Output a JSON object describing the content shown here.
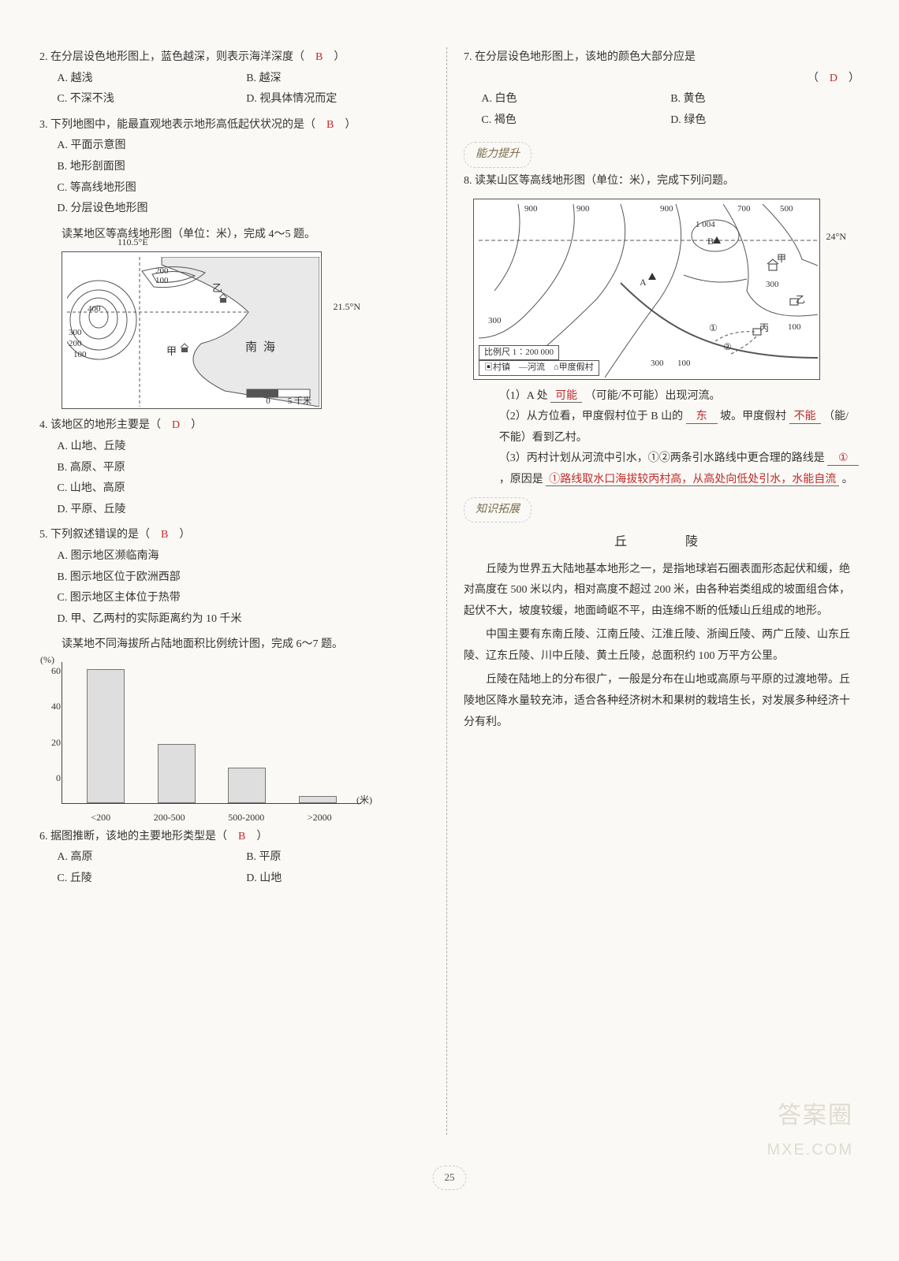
{
  "page_number": "25",
  "colors": {
    "answer": "#c02a2a",
    "text": "#333333",
    "divider": "#aaaaaa",
    "bar_fill": "#dedede",
    "bar_border": "#777777"
  },
  "left": {
    "q2": {
      "stem": "2. 在分层设色地形图上，蓝色越深，则表示海洋深度（　",
      "answer": "B",
      "stem_end": "　）",
      "opts": [
        "A. 越浅",
        "B. 越深",
        "C. 不深不浅",
        "D. 视具体情况而定"
      ]
    },
    "q3": {
      "stem": "3. 下列地图中，能最直观地表示地形高低起伏状况的是（　",
      "answer": "B",
      "stem_end": "　）",
      "opts": [
        "A. 平面示意图",
        "B. 地形剖面图",
        "C. 等高线地形图",
        "D. 分层设色地形图"
      ]
    },
    "stem45_lead": "　　读某地区等高线地形图（单位：米），完成 4～5 题。",
    "figure45": {
      "lon_label": "110.5°E",
      "lat_label": "21.5°N",
      "contours": [
        "100",
        "200",
        "300",
        "400",
        "300",
        "200",
        "100"
      ],
      "places": [
        "甲",
        "乙"
      ],
      "sea": "南海",
      "scale_label": "0　　5 千米"
    },
    "q4": {
      "stem": "4. 该地区的地形主要是（　",
      "answer": "D",
      "stem_end": "　）",
      "opts": [
        "A. 山地、丘陵",
        "B. 高原、平原",
        "C. 山地、高原",
        "D. 平原、丘陵"
      ]
    },
    "q5": {
      "stem": "5. 下列叙述错误的是（　",
      "answer": "B",
      "stem_end": "　）",
      "opts": [
        "A. 图示地区濒临南海",
        "B. 图示地区位于欧洲西部",
        "C. 图示地区主体位于热带",
        "D. 甲、乙两村的实际距离约为 10 千米"
      ]
    },
    "stem67_lead": "　　读某地不同海拔所占陆地面积比例统计图，完成 6～7 题。",
    "chart67": {
      "type": "bar",
      "y_label": "(%)",
      "x_label": "(米)",
      "y_ticks": [
        "60",
        "40",
        "20",
        "0"
      ],
      "y_max": 60,
      "categories": [
        "<200",
        "200-500",
        "500-2000",
        ">2000"
      ],
      "values": [
        57,
        25,
        15,
        3
      ],
      "bar_color": "#dedede",
      "bar_border": "#777777"
    },
    "q6": {
      "stem": "6. 据图推断，该地的主要地形类型是（　",
      "answer": "B",
      "stem_end": "　）",
      "opts": [
        "A. 高原",
        "B. 平原",
        "C. 丘陵",
        "D. 山地"
      ]
    }
  },
  "right": {
    "q7": {
      "stem": "7. 在分层设色地形图上，该地的颜色大部分应是",
      "paren_answer": "D",
      "opts": [
        "A. 白色",
        "B. 黄色",
        "C. 褐色",
        "D. 绿色"
      ]
    },
    "section_ability": "能力提升",
    "q8": {
      "stem": "8. 读某山区等高线地形图（单位：米），完成下列问题。",
      "figure": {
        "lat_label": "24°N",
        "contour_labels": [
          "900",
          "900",
          "900",
          "700",
          "500",
          "1 004",
          "300",
          "300",
          "300",
          "100",
          "100",
          "300"
        ],
        "letters": [
          "A",
          "B",
          "甲",
          "乙",
          "丙"
        ],
        "routes": [
          "①",
          "②"
        ],
        "scale": "比例尺 1∶200 000",
        "legend": "▣村镇　—河流　⌂甲度假村"
      },
      "sub1_pre": "（1）A 处",
      "sub1_ans": "可能",
      "sub1_post": "（可能/不可能）出现河流。",
      "sub2_pre": "（2）从方位看，甲度假村位于 B 山的",
      "sub2_ans1": "东",
      "sub2_mid": "坡。甲度假村",
      "sub2_ans2": "不能",
      "sub2_post": "（能/不能）看到乙村。",
      "sub3_pre": "（3）丙村计划从河流中引水，①②两条引水路线中更合理的路线是",
      "sub3_ans1": "①",
      "sub3_mid": "，原因是",
      "sub3_ans2": "①路线取水口海拔较丙村高，从高处向低处引水，水能自流",
      "sub3_post": "。"
    },
    "section_ext": "知识拓展",
    "essay_title": "丘　　陵",
    "essay": [
      "丘陵为世界五大陆地基本地形之一，是指地球岩石圈表面形态起伏和缓，绝对高度在 500 米以内，相对高度不超过 200 米，由各种岩类组成的坡面组合体，起伏不大，坡度较缓，地面崎岖不平，由连绵不断的低矮山丘组成的地形。",
      "中国主要有东南丘陵、江南丘陵、江淮丘陵、浙闽丘陵、两广丘陵、山东丘陵、辽东丘陵、川中丘陵、黄土丘陵，总面积约 100 万平方公里。",
      "丘陵在陆地上的分布很广，一般是分布在山地或高原与平原的过渡地带。丘陵地区降水量较充沛，适合各种经济树木和果树的栽培生长，对发展多种经济十分有利。"
    ]
  },
  "watermarks": {
    "w1": "答案圈",
    "w2": "MXE.COM"
  }
}
